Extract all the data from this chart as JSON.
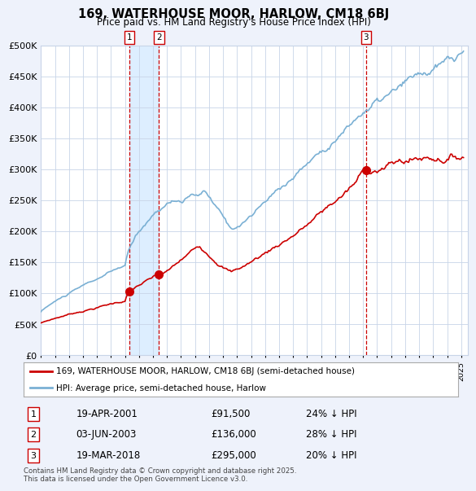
{
  "title": "169, WATERHOUSE MOOR, HARLOW, CM18 6BJ",
  "subtitle": "Price paid vs. HM Land Registry's House Price Index (HPI)",
  "red_label": "169, WATERHOUSE MOOR, HARLOW, CM18 6BJ (semi-detached house)",
  "blue_label": "HPI: Average price, semi-detached house, Harlow",
  "footnote": "Contains HM Land Registry data © Crown copyright and database right 2025.\nThis data is licensed under the Open Government Licence v3.0.",
  "transactions": [
    {
      "num": 1,
      "date": "19-APR-2001",
      "price": 91500,
      "pct": "24% ↓ HPI",
      "date_x": 2001.3
    },
    {
      "num": 2,
      "date": "03-JUN-2003",
      "price": 136000,
      "pct": "28% ↓ HPI",
      "date_x": 2003.42
    },
    {
      "num": 3,
      "date": "19-MAR-2018",
      "price": 295000,
      "pct": "20% ↓ HPI",
      "date_x": 2018.21
    }
  ],
  "ylim": [
    0,
    500000
  ],
  "yticks": [
    0,
    50000,
    100000,
    150000,
    200000,
    250000,
    300000,
    350000,
    400000,
    450000,
    500000
  ],
  "ytick_labels": [
    "£0",
    "£50K",
    "£100K",
    "£150K",
    "£200K",
    "£250K",
    "£300K",
    "£350K",
    "£400K",
    "£450K",
    "£500K"
  ],
  "xlim_start": 1995.0,
  "xlim_end": 2025.5,
  "bg_color": "#eef2fb",
  "plot_bg_color": "#ffffff",
  "grid_color": "#c8d4e8",
  "red_color": "#cc0000",
  "blue_color": "#7ab0d4",
  "shade_color": "#ddeeff",
  "dashed_color": "#cc0000"
}
